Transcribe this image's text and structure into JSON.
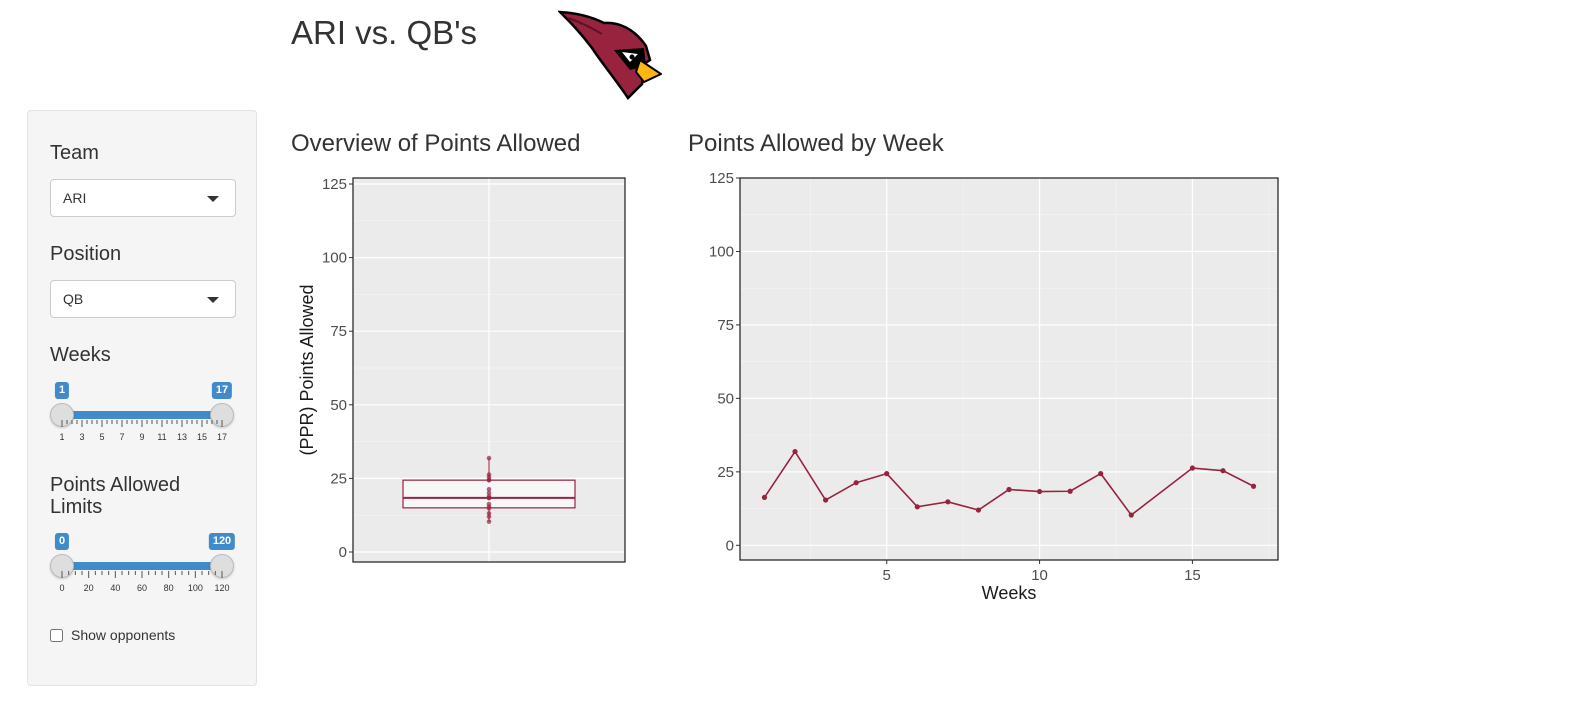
{
  "page": {
    "title": "ARI vs. QB's"
  },
  "colors": {
    "team_primary": "#97233f",
    "team_secondary": "#ffb612",
    "slider_accent": "#428bca"
  },
  "sidebar": {
    "team": {
      "label": "Team",
      "value": "ARI"
    },
    "position": {
      "label": "Position",
      "value": "QB"
    },
    "weeks": {
      "label": "Weeks",
      "min": 1,
      "max": 17,
      "from": 1,
      "to": 17,
      "from_label": "1",
      "to_label": "17",
      "tick_labels": [
        "1",
        "3",
        "5",
        "7",
        "9",
        "11",
        "13",
        "15",
        "17"
      ]
    },
    "points": {
      "label": "Points Allowed Limits",
      "min": 0,
      "max": 120,
      "from": 0,
      "to": 120,
      "from_label": "0",
      "to_label": "120",
      "tick_labels": [
        "0",
        "20",
        "40",
        "60",
        "80",
        "100",
        "120"
      ]
    },
    "show_opponents": {
      "label": "Show opponents",
      "checked": false
    }
  },
  "overview": {
    "title": "Overview of Points Allowed"
  },
  "byweek": {
    "title": "Points Allowed by Week"
  },
  "chart_data": [
    {
      "type": "box",
      "title": "Overview of Points Allowed",
      "ylabel": "(PPR) Points Allowed",
      "xlabel": "",
      "ylim": [
        0,
        125
      ],
      "yticks": [
        "0",
        "25",
        "50",
        "75",
        "100",
        "125"
      ],
      "values": [
        16.3,
        31.9,
        15.4,
        21.3,
        24.4,
        13.1,
        14.8,
        12.0,
        19.0,
        18.3,
        18.4,
        24.4,
        10.3,
        26.3,
        25.4,
        20.1
      ],
      "box": {
        "min": 10.3,
        "q1": 15.0,
        "median": 18.4,
        "q3": 24.4,
        "max": 31.9
      }
    },
    {
      "type": "line",
      "title": "Points Allowed by Week",
      "xlabel": "Weeks",
      "ylabel": "",
      "xlim": [
        0.2,
        17.8
      ],
      "ylim": [
        -5,
        125
      ],
      "xticks": [
        "5",
        "10",
        "15"
      ],
      "yticks": [
        "0",
        "25",
        "50",
        "75",
        "100",
        "125"
      ],
      "x": [
        1,
        2,
        3,
        4,
        5,
        6,
        7,
        8,
        9,
        10,
        11,
        12,
        13,
        15,
        16,
        17
      ],
      "y": [
        16.3,
        31.9,
        15.4,
        21.3,
        24.4,
        13.1,
        14.8,
        12.0,
        19.0,
        18.3,
        18.4,
        24.4,
        10.3,
        26.3,
        25.4,
        20.1
      ]
    }
  ]
}
